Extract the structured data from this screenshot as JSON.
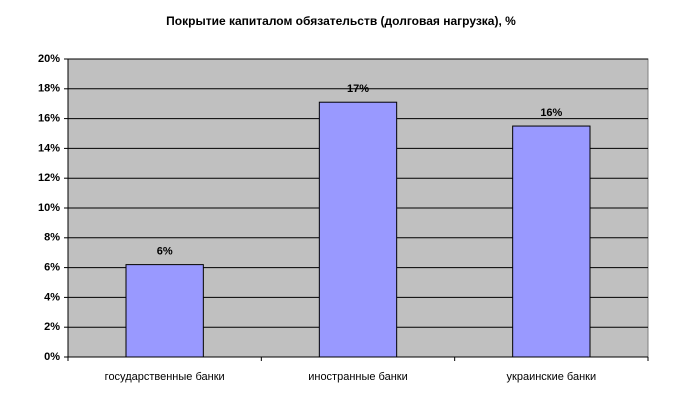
{
  "chart_data": {
    "type": "bar",
    "title": "Покрытие капиталом обязательств (долговая нагрузка), %",
    "categories": [
      "государственные банки",
      "иностранные банки",
      "украинские банки"
    ],
    "values": [
      6.2,
      17.1,
      15.5
    ],
    "value_labels": [
      "6%",
      "17%",
      "16%"
    ],
    "color": "#9999ff",
    "ylim": [
      0,
      20
    ],
    "yticks": [
      {
        "value": 0,
        "label": "0%"
      },
      {
        "value": 2,
        "label": "2%"
      },
      {
        "value": 4,
        "label": "4%"
      },
      {
        "value": 6,
        "label": "6%"
      },
      {
        "value": 8,
        "label": "8%"
      },
      {
        "value": 10,
        "label": "10%"
      },
      {
        "value": 12,
        "label": "12%"
      },
      {
        "value": 14,
        "label": "14%"
      },
      {
        "value": 16,
        "label": "16%"
      },
      {
        "value": 18,
        "label": "18%"
      },
      {
        "value": 20,
        "label": "20%"
      }
    ],
    "grid": true
  }
}
